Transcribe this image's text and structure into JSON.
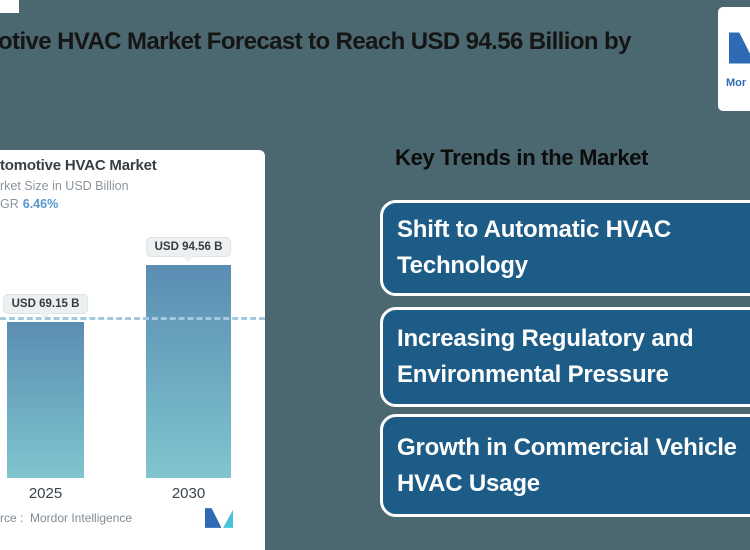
{
  "colors": {
    "background": "#4b676f",
    "panel_bg": "#ffffff",
    "card_blue": "#1d5c87",
    "card_border": "#ffffff",
    "bar_gradient_top": "#5b8db2",
    "bar_gradient_bottom": "#80c5cf",
    "dashed_line": "#a5c8e1",
    "cagr_accent": "#5496cd",
    "logo_dark_blue": "#2e6bb4",
    "logo_teal": "#4ac1d8",
    "tooltip_bg": "#edf0f0"
  },
  "header": {
    "title_visible": "otive HVAC Market Forecast to Reach USD 94.56 Billion by",
    "logo_word_visible": "Mor"
  },
  "chart_panel": {
    "title_visible": "tomotive HVAC Market",
    "subtitle_visible": "rket Size in USD Billion",
    "cagr_label_visible": "GR",
    "cagr_value": "6.46%",
    "source_visible": "rce :  Mordor Intelligence"
  },
  "chart_data": {
    "type": "bar",
    "categories": [
      "2025",
      "2030"
    ],
    "values": [
      69.15,
      94.56
    ],
    "bar_labels": [
      "USD 69.15 B",
      "USD 94.56 B"
    ],
    "unit": "USD Billion",
    "cagr_percent": 6.46,
    "dashed_reference_value": 69.15,
    "legend": "none",
    "grid": "off",
    "ylim": [
      0,
      100
    ]
  },
  "key_trends": {
    "heading": "Key Trends in the Market",
    "cards": [
      {
        "lines": [
          "Shift to Automatic HVAC",
          "Technology"
        ]
      },
      {
        "lines": [
          "Increasing Regulatory and",
          "Environmental Pressure"
        ]
      },
      {
        "lines": [
          "Growth in Commercial Vehicle",
          "HVAC Usage"
        ]
      }
    ]
  }
}
